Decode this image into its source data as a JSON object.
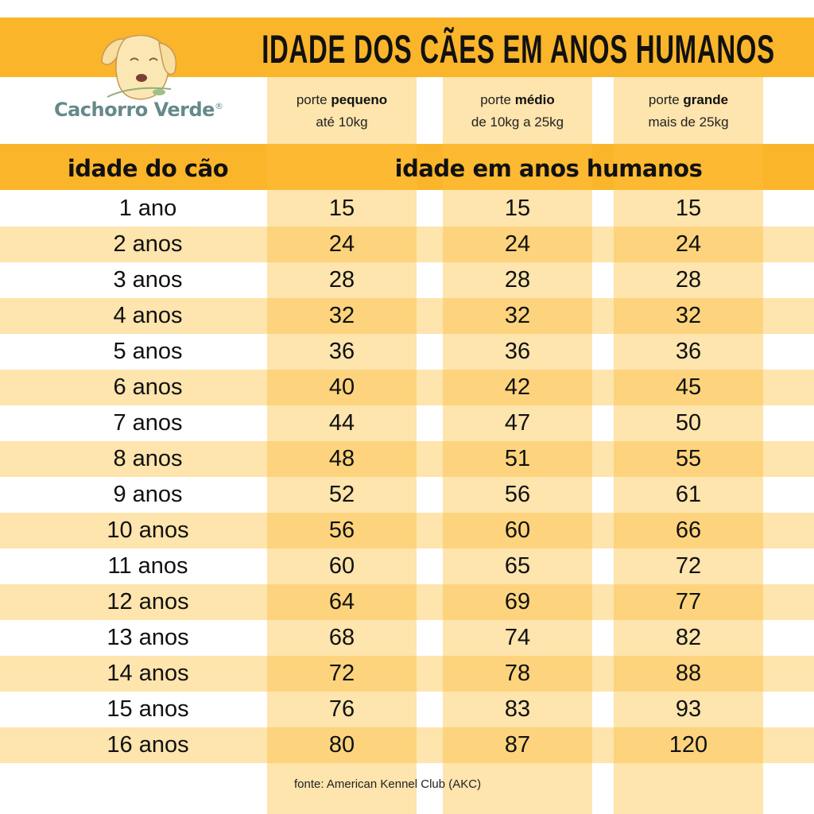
{
  "title": "IDADE DOS CÃES EM ANOS HUMANOS",
  "logo": {
    "brand": "Cachorro Verde",
    "registered": "®"
  },
  "sizes": [
    {
      "prefix": "porte ",
      "bold": "pequeno",
      "range": "até 10kg"
    },
    {
      "prefix": "porte ",
      "bold": "médio",
      "range": "de 10kg a 25kg"
    },
    {
      "prefix": "porte ",
      "bold": "grande",
      "range": "mais de 25kg"
    }
  ],
  "headers": {
    "dog_age": "idade do cão",
    "human_age": "idade em anos humanos"
  },
  "rows": [
    {
      "age": "1 ano",
      "small": "15",
      "medium": "15",
      "large": "15"
    },
    {
      "age": "2 anos",
      "small": "24",
      "medium": "24",
      "large": "24"
    },
    {
      "age": "3 anos",
      "small": "28",
      "medium": "28",
      "large": "28"
    },
    {
      "age": "4 anos",
      "small": "32",
      "medium": "32",
      "large": "32"
    },
    {
      "age": "5 anos",
      "small": "36",
      "medium": "36",
      "large": "36"
    },
    {
      "age": "6 anos",
      "small": "40",
      "medium": "42",
      "large": "45"
    },
    {
      "age": "7 anos",
      "small": "44",
      "medium": "47",
      "large": "50"
    },
    {
      "age": "8 anos",
      "small": "48",
      "medium": "51",
      "large": "55"
    },
    {
      "age": "9 anos",
      "small": "52",
      "medium": "56",
      "large": "61"
    },
    {
      "age": "10 anos",
      "small": "56",
      "medium": "60",
      "large": "66"
    },
    {
      "age": "11 anos",
      "small": "60",
      "medium": "65",
      "large": "72"
    },
    {
      "age": "12 anos",
      "small": "64",
      "medium": "69",
      "large": "77"
    },
    {
      "age": "13 anos",
      "small": "68",
      "medium": "74",
      "large": "82"
    },
    {
      "age": "14 anos",
      "small": "72",
      "medium": "78",
      "large": "88"
    },
    {
      "age": "15 anos",
      "small": "76",
      "medium": "83",
      "large": "93"
    },
    {
      "age": "16 anos",
      "small": "80",
      "medium": "87",
      "large": "120"
    }
  ],
  "source": "fonte: American Kennel Club (AKC)",
  "colors": {
    "accent": "#fbb52a",
    "column": "#fee3a6",
    "brand": "#66898a"
  }
}
